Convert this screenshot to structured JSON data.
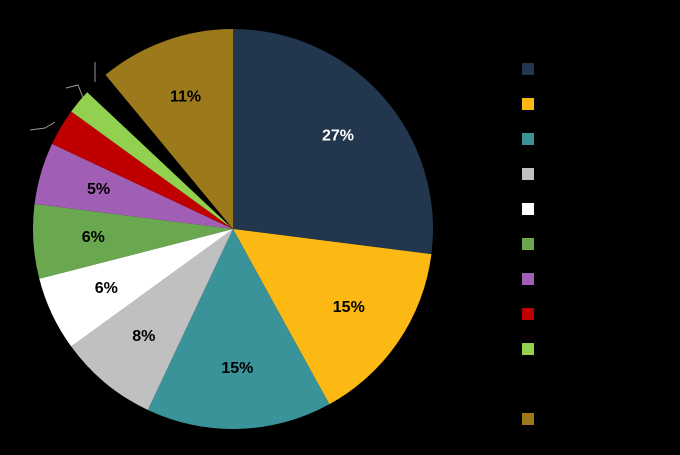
{
  "chart_data": {
    "type": "pie",
    "values": [
      27,
      15,
      15,
      8,
      6,
      6,
      5,
      3,
      2,
      2,
      11
    ],
    "value_labels": [
      "27%",
      "15%",
      "15%",
      "8%",
      "6%",
      "6%",
      "5%",
      null,
      null,
      null,
      "11%"
    ],
    "colors": [
      "#22364d",
      "#fdb913",
      "#3a9399",
      "#c0c0c0",
      "#ffffff",
      "#6aa84f",
      "#a05eb5",
      "#c00000",
      "#92d050",
      "#000000",
      "#9c7a1c"
    ]
  }
}
